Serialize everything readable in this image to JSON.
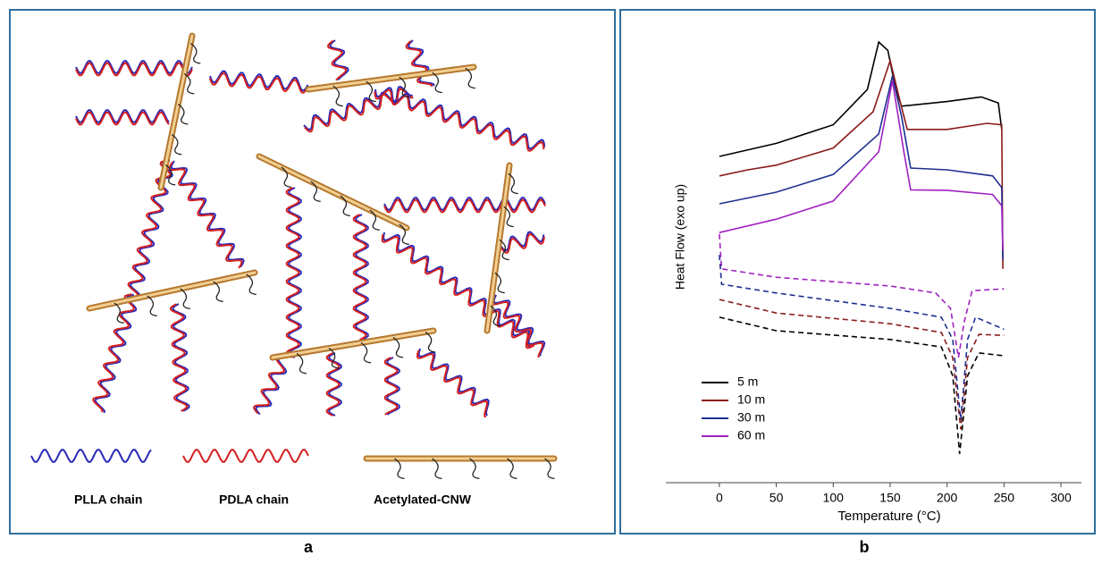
{
  "panel_a": {
    "legend": [
      "PLLA chain",
      "PDLA chain",
      "Acetylated-CNW"
    ],
    "label": "a"
  },
  "chart_data": {
    "type": "line",
    "panel_label": "b",
    "xlabel": "Temperature (°C)",
    "ylabel": "Heat Flow (exo up)",
    "xlim": [
      -47,
      318
    ],
    "ylim": [
      0,
      100
    ],
    "xticks": [
      0,
      50,
      100,
      150,
      200,
      250,
      300
    ],
    "cooling_dashed": true,
    "series": [
      {
        "name": "5 m",
        "color": "#000000",
        "heating_x": [
          0,
          50,
          100,
          130,
          140,
          148,
          155,
          160,
          200,
          230,
          245,
          248
        ],
        "heating": [
          70.2,
          73,
          77,
          84.6,
          94.8,
          93,
          84.6,
          81,
          82,
          83,
          81.7,
          76
        ],
        "cooling_x": [
          0,
          50,
          150,
          195,
          205,
          211,
          218,
          228,
          250
        ],
        "cooling": [
          35.6,
          32.7,
          30.8,
          29.2,
          23,
          6.2,
          23,
          27.9,
          27.3
        ]
      },
      {
        "name": "10 m",
        "color": "#8b1a1a",
        "heating_x": [
          0,
          25,
          50,
          100,
          135,
          150,
          158,
          165,
          200,
          235,
          248,
          249
        ],
        "heating": [
          66,
          67.3,
          68.3,
          72,
          79.8,
          90.8,
          82.7,
          76,
          76,
          77.3,
          77,
          46
        ],
        "cooling_x": [
          0,
          50,
          150,
          195,
          205,
          212,
          218,
          228,
          250
        ],
        "cooling": [
          39.4,
          36.5,
          34.2,
          32.3,
          26.9,
          11.5,
          26.9,
          31.9,
          31.7
        ]
      },
      {
        "name": "30 m",
        "color": "#1f2f8f",
        "heating_x": [
          0,
          50,
          100,
          140,
          152,
          160,
          168,
          200,
          240,
          248,
          249
        ],
        "heating": [
          60,
          62.5,
          66.3,
          75,
          87.5,
          78.8,
          67.7,
          67.3,
          66,
          63.5,
          48
        ],
        "cooling_x": [
          0,
          2,
          50,
          150,
          195,
          205,
          212,
          218,
          225,
          250
        ],
        "cooling": [
          49,
          42.7,
          40.8,
          37.5,
          35.6,
          30.8,
          13.5,
          30.8,
          35.6,
          33
        ]
      },
      {
        "name": "60 m",
        "color": "#a020c0",
        "heating_x": [
          0,
          50,
          100,
          140,
          152,
          162,
          168,
          200,
          240,
          248,
          249
        ],
        "heating": [
          53.8,
          56.7,
          60.6,
          71.2,
          86.5,
          71.2,
          63,
          62.9,
          62,
          59.6,
          50
        ],
        "cooling_x": [
          0,
          2,
          50,
          150,
          190,
          203,
          210,
          215,
          222,
          250
        ],
        "cooling": [
          53.5,
          46,
          44.2,
          42.3,
          40.8,
          37.5,
          26.9,
          34.6,
          41.3,
          41.7
        ]
      }
    ]
  }
}
